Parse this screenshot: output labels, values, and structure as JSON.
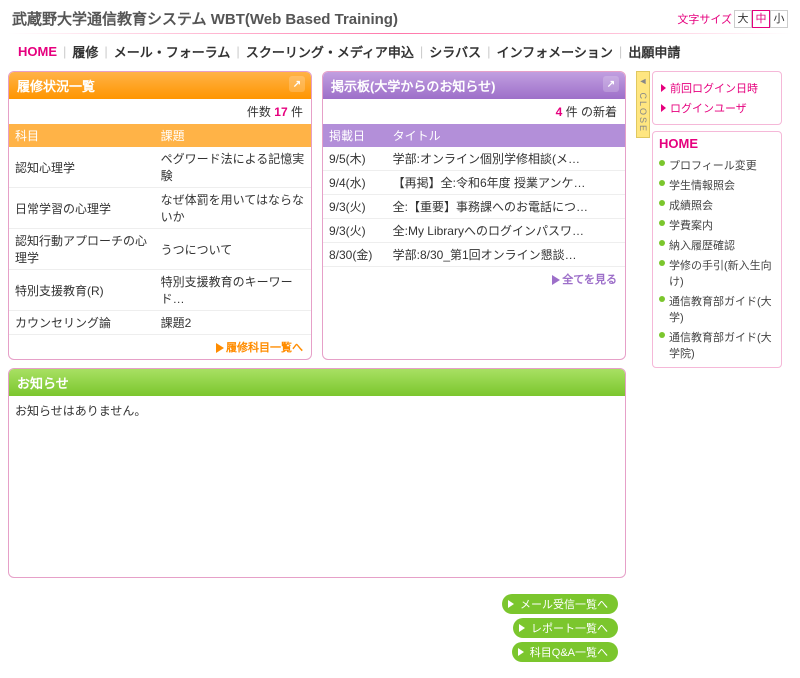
{
  "header": {
    "title": "武蔵野大学通信教育システム  WBT(Web Based Training)",
    "fontSizeLabel": "文字サイズ",
    "fontSizes": [
      "大",
      "中",
      "小"
    ],
    "activeFontSize": "中"
  },
  "nav": {
    "items": [
      {
        "label": "HOME",
        "active": true
      },
      {
        "label": "履修"
      },
      {
        "label": "メール・フォーラム"
      },
      {
        "label": "スクーリング・メディア申込"
      },
      {
        "label": "シラバス"
      },
      {
        "label": "インフォメーション"
      },
      {
        "label": "出願申請"
      }
    ]
  },
  "rirekiPanel": {
    "title": "履修状況一覧",
    "countLabel": "件数",
    "countValue": "17",
    "countUnit": "件",
    "cols": [
      "科目",
      "課題"
    ],
    "rows": [
      [
        "認知心理学",
        "ペグワード法による記憶実験"
      ],
      [
        "日常学習の心理学",
        "なぜ体罰を用いてはならないか"
      ],
      [
        "認知行動アプローチの心理学",
        "うつについて"
      ],
      [
        "特別支援教育(R)",
        "特別支援教育のキーワード…"
      ],
      [
        "カウンセリング論",
        "課題2"
      ]
    ],
    "moreLabel": "履修科目一覧へ"
  },
  "bbsPanel": {
    "title": "掲示板(大学からのお知らせ)",
    "newCountVal": "4",
    "newCountUnit": "件",
    "newCountSuffix": "の新着",
    "cols": [
      "掲載日",
      "タイトル"
    ],
    "rows": [
      [
        "9/5(木)",
        "学部:オンライン個別学修相談(メ…"
      ],
      [
        "9/4(水)",
        "【再掲】全:令和6年度 授業アンケ…"
      ],
      [
        "9/3(火)",
        "全:【重要】事務課へのお電話につ…"
      ],
      [
        "9/3(火)",
        "全:My Libraryへのログインパスワ…"
      ],
      [
        "8/30(金)",
        "学部:8/30_第1回オンライン懇談…"
      ]
    ],
    "moreLabel": "全てを見る"
  },
  "noticePanel": {
    "title": "お知らせ",
    "empty": "お知らせはありません。"
  },
  "greenLinks": [
    "メール受信一覧へ",
    "レポート一覧へ",
    "科目Q&A一覧へ"
  ],
  "sideInfo": {
    "items": [
      "前回ログイン日時",
      "ログインユーザ"
    ]
  },
  "closeTab": "◄ CLOSE",
  "homeMenu": {
    "title": "HOME",
    "items": [
      "プロフィール変更",
      "学生情報照会",
      "成績照会",
      "学費案内",
      "納入履歴確認",
      "学修の手引(新入生向け)",
      "通信教育部ガイド(大学)",
      "通信教育部ガイド(大学院)"
    ]
  }
}
